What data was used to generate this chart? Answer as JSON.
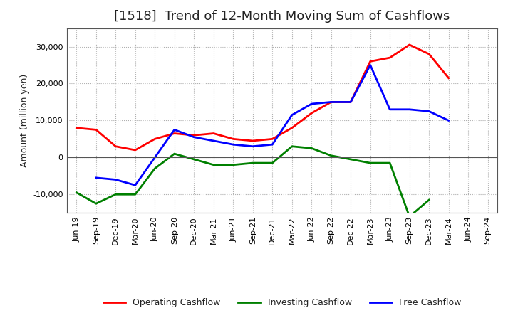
{
  "title": "[1518]  Trend of 12-Month Moving Sum of Cashflows",
  "ylabel": "Amount (million yen)",
  "x_labels": [
    "Jun-19",
    "Sep-19",
    "Dec-19",
    "Mar-20",
    "Jun-20",
    "Sep-20",
    "Dec-20",
    "Mar-21",
    "Jun-21",
    "Sep-21",
    "Dec-21",
    "Mar-22",
    "Jun-22",
    "Sep-22",
    "Dec-22",
    "Mar-23",
    "Jun-23",
    "Sep-23",
    "Dec-23",
    "Mar-24",
    "Jun-24",
    "Sep-24"
  ],
  "operating": [
    8000,
    7500,
    3000,
    2000,
    5000,
    6500,
    6000,
    6500,
    5000,
    4500,
    5000,
    8000,
    12000,
    15000,
    15000,
    26000,
    27000,
    30500,
    28000,
    21500,
    null,
    null
  ],
  "investing": [
    -9500,
    -12500,
    -10000,
    -10000,
    -3000,
    1000,
    -500,
    -2000,
    -2000,
    -1500,
    -1500,
    3000,
    2500,
    500,
    -500,
    -1500,
    -1500,
    -16000,
    -11500,
    null,
    null,
    null
  ],
  "free": [
    null,
    -5500,
    -6000,
    -7500,
    null,
    7500,
    5500,
    4500,
    3500,
    3000,
    3500,
    11500,
    14500,
    15000,
    15000,
    25000,
    13000,
    13000,
    12500,
    10000,
    null,
    null
  ],
  "operating_color": "#ff0000",
  "investing_color": "#008000",
  "free_color": "#0000ff",
  "ylim": [
    -15000,
    35000
  ],
  "yticks": [
    -10000,
    0,
    10000,
    20000,
    30000
  ],
  "background_color": "#ffffff",
  "grid_color": "#b0b0b0",
  "title_color": "#222222",
  "title_fontsize": 13,
  "ylabel_fontsize": 9,
  "tick_fontsize": 8,
  "legend_fontsize": 9,
  "linewidth": 2.0
}
